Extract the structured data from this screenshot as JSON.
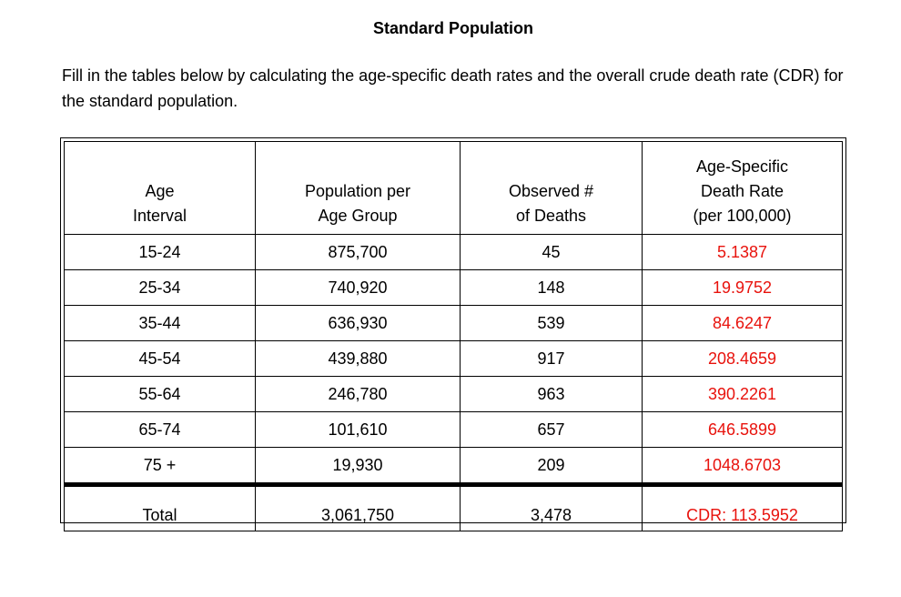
{
  "title": "Standard Population",
  "instructions": "Fill in the tables below by calculating the age-specific death rates and the overall crude death rate (CDR) for the standard population.",
  "table": {
    "headers": {
      "age_line1": "Age",
      "age_line2": "Interval",
      "population_line1": "Population per",
      "population_line2": "Age Group",
      "deaths_line1": "Observed #",
      "deaths_line2": "of Deaths",
      "rate_line1": "Age-Specific",
      "rate_line2": "Death Rate",
      "rate_line3": "(per 100,000)"
    },
    "rows": [
      {
        "age": "15-24",
        "population": "875,700",
        "deaths": "45",
        "rate": "5.1387"
      },
      {
        "age": "25-34",
        "population": "740,920",
        "deaths": "148",
        "rate": "19.9752"
      },
      {
        "age": "35-44",
        "population": "636,930",
        "deaths": "539",
        "rate": "84.6247"
      },
      {
        "age": "45-54",
        "population": "439,880",
        "deaths": "917",
        "rate": "208.4659"
      },
      {
        "age": "55-64",
        "population": "246,780",
        "deaths": "963",
        "rate": "390.2261"
      },
      {
        "age": "65-74",
        "population": "101,610",
        "deaths": "657",
        "rate": "646.5899"
      },
      {
        "age": "75 +",
        "population": "19,930",
        "deaths": "209",
        "rate": "1048.6703"
      }
    ],
    "total": {
      "label": "Total",
      "population": "3,061,750",
      "deaths": "3,478",
      "cdr": "CDR: 113.5952"
    }
  },
  "colors": {
    "answer_red": "#e8120c"
  }
}
